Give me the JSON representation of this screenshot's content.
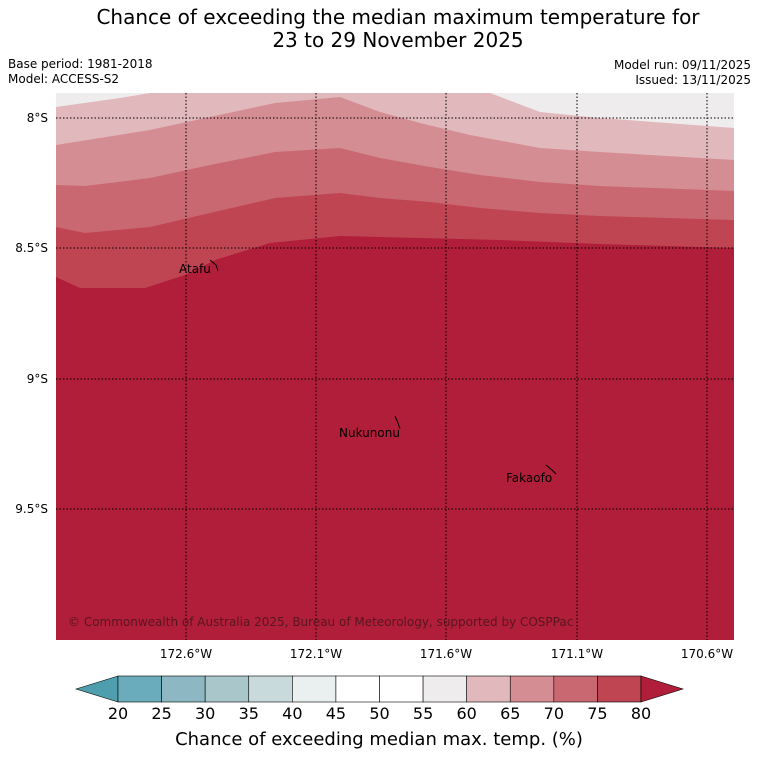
{
  "title": {
    "line1": "Chance of exceeding the median maximum temperature for",
    "line2": "23 to 29 November 2025"
  },
  "meta": {
    "base_period": "Base period: 1981-2018",
    "model": "Model: ACCESS-S2",
    "model_run": "Model run: 09/11/2025",
    "issued": "Issued: 13/11/2025"
  },
  "map": {
    "lat_labels": [
      "8°S",
      "8.5°S",
      "9°S",
      "9.5°S"
    ],
    "lon_labels": [
      "172.6°W",
      "172.1°W",
      "171.6°W",
      "171.1°W",
      "170.6°W"
    ],
    "places": [
      {
        "name": "Atafu"
      },
      {
        "name": "Nukunonu"
      },
      {
        "name": "Fakaofo"
      }
    ],
    "copyright": "© Commonwealth of Australia 2025, Bureau of Meteorology, supported by COSPPac"
  },
  "colorbar": {
    "ticks": [
      "20",
      "25",
      "30",
      "35",
      "40",
      "45",
      "50",
      "55",
      "60",
      "65",
      "70",
      "75",
      "80"
    ],
    "colors": [
      "#6aacbb",
      "#8db7c2",
      "#a9c7cb",
      "#c8dadb",
      "#eaeff0",
      "#ffffff",
      "#ffffff",
      "#efeced",
      "#e1b8bc",
      "#d48d93",
      "#c96871",
      "#c04553"
    ],
    "under_color": "#4f9eae",
    "over_color": "#b01e39",
    "label": "Chance of exceeding median max. temp. (%)"
  }
}
